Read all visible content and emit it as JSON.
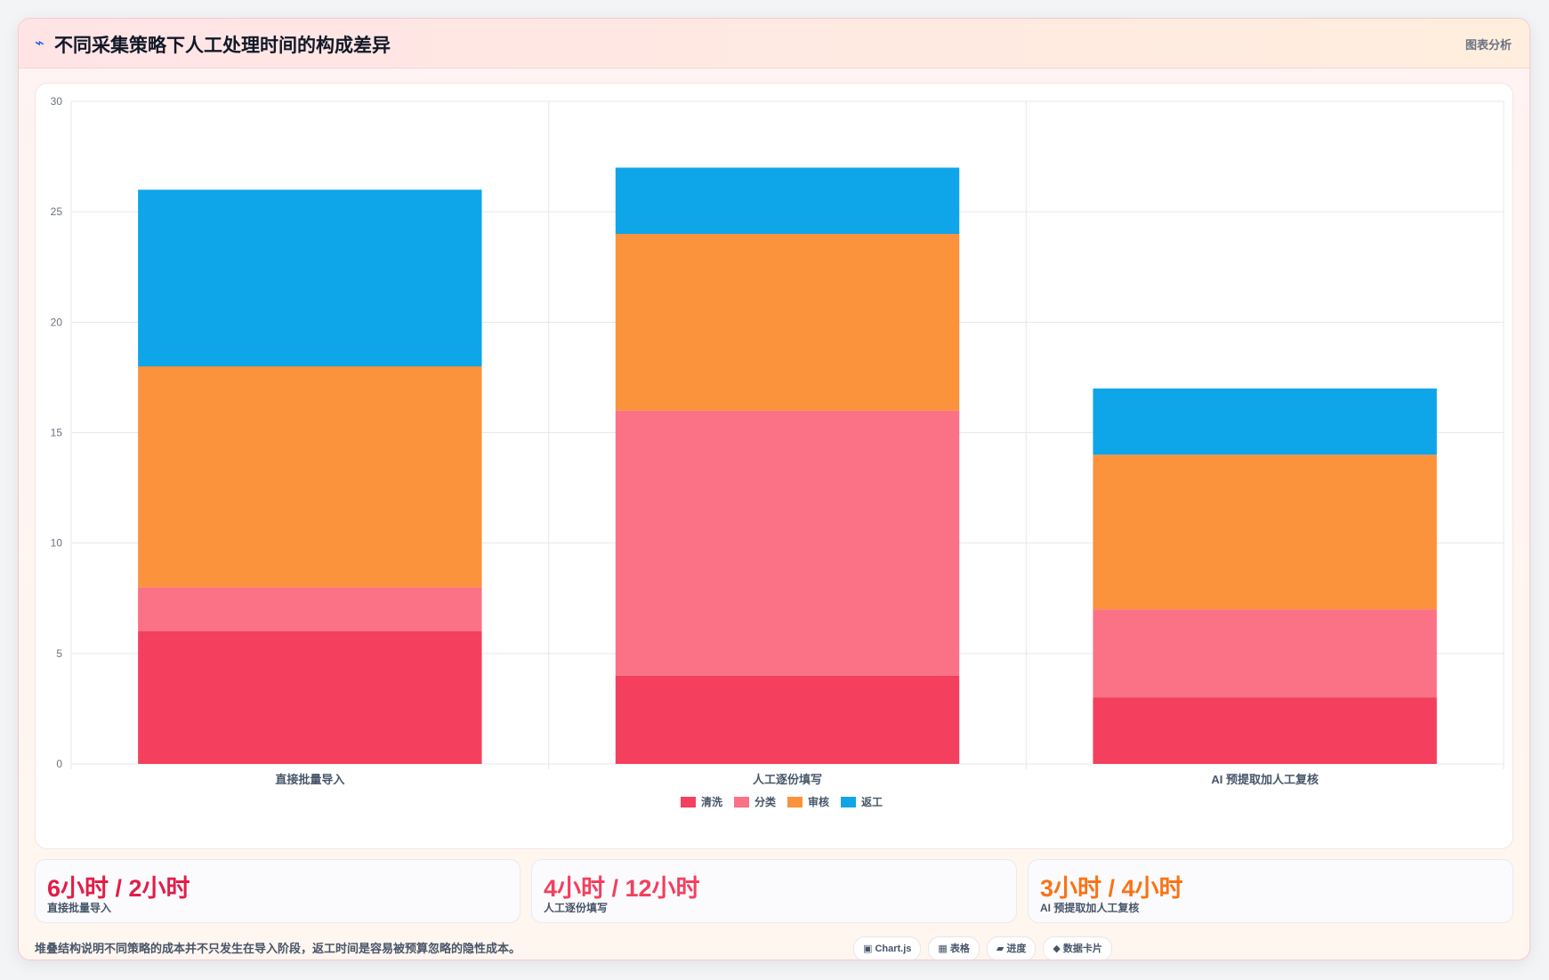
{
  "header": {
    "icon": "pulse-icon",
    "title": "不同采集策略下人工处理时间的构成差异",
    "tag": "图表分析"
  },
  "chart_data": {
    "type": "bar",
    "stacked": true,
    "categories": [
      "直接批量导入",
      "人工逐份填写",
      "AI 预提取加人工复核"
    ],
    "series": [
      {
        "name": "清洗",
        "color": "#f43f5e",
        "values": [
          6,
          4,
          3
        ]
      },
      {
        "name": "分类",
        "color": "#fb7185",
        "values": [
          2,
          12,
          4
        ]
      },
      {
        "name": "审核",
        "color": "#fb923c",
        "values": [
          10,
          8,
          7
        ]
      },
      {
        "name": "返工",
        "color": "#0ea5e9",
        "values": [
          8,
          3,
          3
        ]
      }
    ],
    "ylim": [
      0,
      30
    ],
    "yticks": [
      0,
      5,
      10,
      15,
      20,
      25,
      30
    ],
    "grid": true,
    "legend": "bottom"
  },
  "stats": [
    {
      "value": "6小时 / 2小时",
      "label": "直接批量导入",
      "color": "#e11d48"
    },
    {
      "value": "4小时 / 12小时",
      "label": "人工逐份填写",
      "color": "#f43f5e"
    },
    {
      "value": "3小时 / 4小时",
      "label": "AI 预提取加人工复核",
      "color": "#f97316"
    }
  ],
  "footer": {
    "note": "堆叠结构说明不同策略的成本并不只发生在导入阶段，返工时间是容易被预算忽略的隐性成本。",
    "chips": [
      "▣ Chart.js",
      "▦ 表格",
      "▰ 进度",
      "◆ 数据卡片"
    ]
  }
}
